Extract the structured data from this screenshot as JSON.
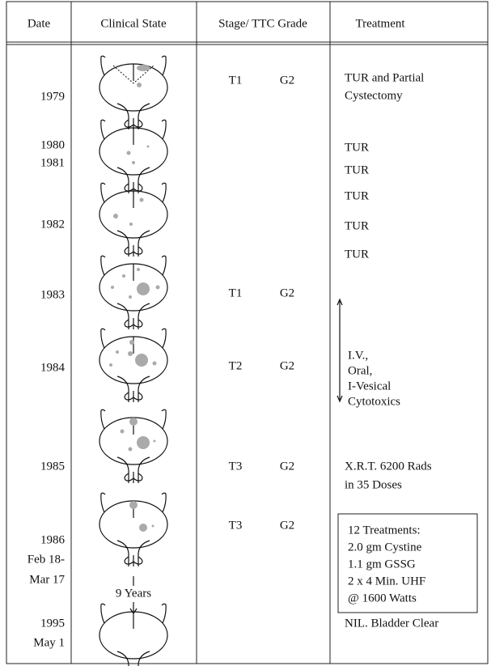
{
  "header": [
    "Date",
    "Clinical State",
    "Stage/ TTC Grade",
    "Treatment"
  ],
  "dates": [
    [
      "1979"
    ],
    [
      "1980",
      "1981"
    ],
    [
      "1982"
    ],
    [
      "1983"
    ],
    [
      "1984"
    ],
    [
      "1985"
    ],
    [
      "1986",
      "Feb 18-",
      "Mar 17"
    ],
    [
      "1995",
      "May 1"
    ]
  ],
  "stages": [
    {
      "stage": "T1",
      "grade": "G2"
    },
    {
      "stage": "T1",
      "grade": "G2"
    },
    {
      "stage": "T2",
      "grade": "G2"
    },
    {
      "stage": "T3",
      "grade": "G2"
    },
    {
      "stage": "T3",
      "grade": "G2"
    }
  ],
  "interval": "9 Years",
  "treatments": [
    [
      "TUR and Partial",
      "Cystectomy"
    ],
    [
      "TUR"
    ],
    [
      "TUR"
    ],
    [
      "TUR"
    ],
    [
      "TUR"
    ],
    [
      "TUR"
    ],
    [
      "I.V.,",
      "Oral,",
      "I-Vesical",
      "Cytotoxics"
    ],
    [
      "X.R.T. 6200 Rads",
      "in 35 Doses"
    ],
    [
      "12 Treatments:",
      "2.0 gm Cystine",
      "1.1 gm GSSG",
      "2 x 4 Min. UHF",
      "@ 1600 Watts"
    ],
    [
      "NIL. Bladder Clear"
    ]
  ]
}
